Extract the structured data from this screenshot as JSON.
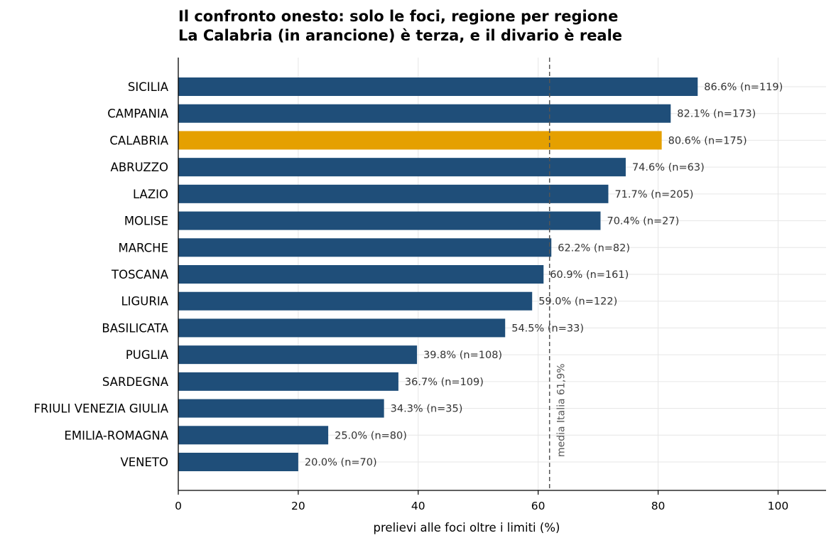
{
  "chart_data": {
    "type": "bar",
    "orientation": "horizontal",
    "title": "Il confronto onesto: solo le foci, regione per regione",
    "subtitle": "La Calabria (in arancione) è terza, e il divario è reale",
    "xlabel": "prelievi alle foci oltre i limiti (%)",
    "ylabel": "",
    "xlim": [
      0,
      108
    ],
    "xticks": [
      0,
      20,
      40,
      60,
      80,
      100
    ],
    "grid": true,
    "categories": [
      "SICILIA",
      "CAMPANIA",
      "CALABRIA",
      "ABRUZZO",
      "LAZIO",
      "MOLISE",
      "MARCHE",
      "TOSCANA",
      "LIGURIA",
      "BASILICATA",
      "PUGLIA",
      "SARDEGNA",
      "FRIULI VENEZIA GIULIA",
      "EMILIA-ROMAGNA",
      "VENETO"
    ],
    "values": [
      86.6,
      82.1,
      80.6,
      74.6,
      71.7,
      70.4,
      62.2,
      60.9,
      59.0,
      54.5,
      39.8,
      36.7,
      34.3,
      25.0,
      20.0
    ],
    "data_labels": [
      "86.6%  (n=119)",
      "82.1%  (n=173)",
      "80.6%  (n=175)",
      "74.6%  (n=63)",
      "71.7%  (n=205)",
      "70.4%  (n=27)",
      "62.2%  (n=82)",
      "60.9%  (n=161)",
      "59.0%  (n=122)",
      "54.5%  (n=33)",
      "39.8%  (n=108)",
      "36.7%  (n=109)",
      "34.3%  (n=35)",
      "25.0%  (n=80)",
      "20.0%  (n=70)"
    ],
    "highlight": "CALABRIA",
    "reference_line": {
      "value": 61.9,
      "label": "media Italia 61,9%"
    }
  },
  "colors": {
    "bar": "#1f4e79",
    "highlight": "#e5a000",
    "reference": "#555555",
    "grid": "#e6e6e6",
    "axis": "#000000"
  }
}
